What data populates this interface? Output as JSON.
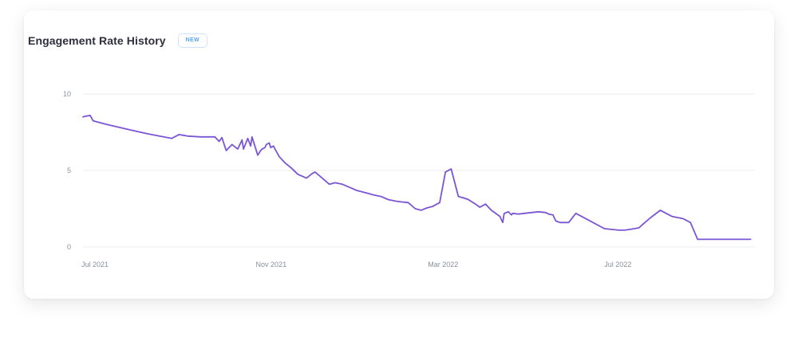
{
  "card": {
    "title": "Engagement Rate History",
    "badge": "NEW"
  },
  "colors": {
    "line": "#7b55d4",
    "grid": "#ececf1",
    "tick_text": "#8a8f99",
    "badge_text": "#5aa3ee",
    "badge_border": "#cfe3fb"
  },
  "chart_data": {
    "type": "line",
    "title": "Engagement Rate History",
    "xlabel": "",
    "ylabel": "",
    "xlim": [
      "2021-07-01",
      "2022-10-13"
    ],
    "ylim": [
      0,
      10
    ],
    "yticks": [
      {
        "value": 0,
        "label": "0"
      },
      {
        "value": 5,
        "label": "5"
      },
      {
        "value": 10,
        "label": "10"
      }
    ],
    "xticks": [
      {
        "value": "2021-07-01",
        "label": "Jul 2021"
      },
      {
        "value": "2021-11-01",
        "label": "Nov 2021"
      },
      {
        "value": "2022-03-01",
        "label": "Mar 2022"
      },
      {
        "value": "2022-07-01",
        "label": "Jul 2022"
      }
    ],
    "grid": true,
    "legend": "none",
    "series": [
      {
        "x": [
          "2021-07-01",
          "2021-07-03",
          "2021-07-06",
          "2021-07-08",
          "2021-07-18",
          "2021-08-01",
          "2021-08-15",
          "2021-09-01",
          "2021-09-06",
          "2021-09-09",
          "2021-09-12",
          "2021-09-21",
          "2021-10-01",
          "2021-10-04",
          "2021-10-06",
          "2021-10-09",
          "2021-10-13",
          "2021-10-17",
          "2021-10-20",
          "2021-10-21",
          "2021-10-24",
          "2021-10-26",
          "2021-10-27",
          "2021-10-31",
          "2021-11-02",
          "2021-11-03",
          "2021-11-05",
          "2021-11-06",
          "2021-11-08",
          "2021-11-09",
          "2021-11-11",
          "2021-11-12",
          "2021-11-15",
          "2021-11-19",
          "2021-11-23",
          "2021-11-28",
          "2021-12-04",
          "2021-12-08",
          "2021-12-10",
          "2021-12-15",
          "2021-12-20",
          "2021-12-24",
          "2021-12-29",
          "2022-01-03",
          "2022-01-08",
          "2022-01-12",
          "2022-01-16",
          "2022-01-20",
          "2022-01-25",
          "2022-01-30",
          "2022-02-04",
          "2022-02-08",
          "2022-02-13",
          "2022-02-18",
          "2022-02-22",
          "2022-02-26",
          "2022-03-02",
          "2022-03-07",
          "2022-03-11",
          "2022-03-15",
          "2022-03-20",
          "2022-03-24",
          "2022-03-27",
          "2022-04-01",
          "2022-04-04",
          "2022-04-08",
          "2022-04-12",
          "2022-04-18",
          "2022-04-20",
          "2022-04-21",
          "2022-04-24",
          "2022-04-25",
          "2022-04-26",
          "2022-04-27",
          "2022-05-01",
          "2022-05-05",
          "2022-05-10",
          "2022-05-15",
          "2022-05-20",
          "2022-05-22",
          "2022-05-25",
          "2022-05-27",
          "2022-05-30",
          "2022-06-05",
          "2022-06-10",
          "2022-06-18",
          "2022-06-30",
          "2022-07-10",
          "2022-07-14",
          "2022-07-18",
          "2022-07-24",
          "2022-07-27",
          "2022-08-01",
          "2022-08-08",
          "2022-08-16",
          "2022-08-24",
          "2022-08-29",
          "2022-09-03",
          "2022-09-07",
          "2022-09-10",
          "2022-09-14",
          "2022-09-19",
          "2022-09-24",
          "2022-09-28",
          "2022-10-01",
          "2022-10-05",
          "2022-10-07",
          "2022-10-08",
          "2022-10-10"
        ],
        "values": [
          8.5,
          8.55,
          8.6,
          8.25,
          8.0,
          7.7,
          7.4,
          7.1,
          7.35,
          7.3,
          7.25,
          7.2,
          7.2,
          6.9,
          7.15,
          6.3,
          6.7,
          6.4,
          7.0,
          6.4,
          7.1,
          6.6,
          7.2,
          6.0,
          6.3,
          6.4,
          6.5,
          6.7,
          6.8,
          6.5,
          6.6,
          6.4,
          5.9,
          5.5,
          5.2,
          4.75,
          4.5,
          4.8,
          4.9,
          4.5,
          4.1,
          4.2,
          4.1,
          3.9,
          3.7,
          3.6,
          3.5,
          3.4,
          3.3,
          3.1,
          3.0,
          2.95,
          2.9,
          2.5,
          2.4,
          2.55,
          2.65,
          2.9,
          4.9,
          5.1,
          3.3,
          3.2,
          3.1,
          2.8,
          2.6,
          2.8,
          2.4,
          2.0,
          1.6,
          2.2,
          2.3,
          2.2,
          2.1,
          2.2,
          2.15,
          2.2,
          2.25,
          2.3,
          2.25,
          2.15,
          2.1,
          1.7,
          1.6,
          1.6,
          2.2,
          1.8,
          1.2,
          1.1,
          1.1,
          1.15,
          1.25,
          1.5,
          1.9,
          2.4,
          2.0,
          1.85,
          1.6,
          0.5,
          0.5,
          0.5,
          0.5,
          0.5,
          0.5,
          0.5,
          0.5,
          0.5,
          0.5,
          0.5,
          0.5
        ]
      }
    ]
  }
}
